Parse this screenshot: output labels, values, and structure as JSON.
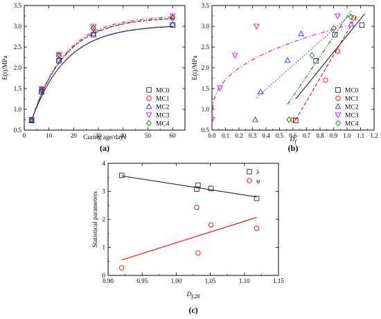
{
  "colors": {
    "MC0": "#222222",
    "MC1": "#ff0000",
    "MC2": "#2b2bff",
    "MC3": "#e600e6",
    "MC4": "#008000",
    "lambda": "#222222",
    "phi": "#ff0000"
  },
  "chart_data": [
    {
      "type": "scatter",
      "panel_label": "(a)",
      "xlabel": "Curing age/days",
      "ylabel": "E(t)/MPa",
      "xlim": [
        0,
        65
      ],
      "ylim": [
        0.5,
        3.5
      ],
      "xticks": [
        0,
        10,
        20,
        30,
        40,
        50,
        60
      ],
      "xtick_labels": [
        "0",
        "10",
        "20",
        "30",
        "40",
        "50",
        "60"
      ],
      "yticks": [
        0.5,
        1.0,
        1.5,
        2.0,
        2.5,
        3.0,
        3.5
      ],
      "ytick_labels": [
        "0.5",
        "1.0",
        "1.5",
        "2.0",
        "2.5",
        "3.0",
        "3.5"
      ],
      "legend_position": "bottom-right",
      "series": [
        {
          "name": "MC0",
          "marker": "square",
          "line": "solid",
          "x": [
            3,
            7,
            14,
            28,
            60
          ],
          "y": [
            0.73,
            1.42,
            2.17,
            2.8,
            3.03
          ]
        },
        {
          "name": "MC1",
          "marker": "circle",
          "line": "dashed",
          "x": [
            3,
            7,
            14,
            28,
            60
          ],
          "y": [
            0.75,
            1.48,
            2.3,
            2.95,
            3.2
          ]
        },
        {
          "name": "MC2",
          "marker": "triangle-up",
          "line": "dotted",
          "x": [
            3,
            7,
            14,
            28,
            60
          ],
          "y": [
            0.74,
            1.45,
            2.2,
            2.82,
            3.05
          ]
        },
        {
          "name": "MC3",
          "marker": "triangle-down",
          "line": "dash-dot",
          "x": [
            3,
            7,
            14,
            28,
            60
          ],
          "y": [
            0.76,
            1.5,
            2.32,
            3.0,
            3.25
          ]
        },
        {
          "name": "MC4",
          "marker": "diamond",
          "line": "dash-dot-dot",
          "x": [
            3,
            7,
            14,
            28,
            60
          ],
          "y": [
            0.74,
            1.47,
            2.28,
            2.96,
            3.22
          ]
        }
      ],
      "fit_curves": [
        {
          "series": "MC0",
          "e_inf": 3.03,
          "k": 0.072
        },
        {
          "series": "MC1",
          "e_inf": 3.22,
          "k": 0.073
        },
        {
          "series": "MC2",
          "e_inf": 3.04,
          "k": 0.072
        },
        {
          "series": "MC3",
          "e_inf": 3.26,
          "k": 0.074
        },
        {
          "series": "MC4",
          "e_inf": 3.23,
          "k": 0.073
        }
      ]
    },
    {
      "type": "scatter",
      "panel_label": "(b)",
      "xlabel": "D",
      "xlabel_sub": "f",
      "ylabel": "E(t)/MPa",
      "xlim": [
        0,
        1.2
      ],
      "ylim": [
        0.5,
        3.5
      ],
      "xticks": [
        0.0,
        0.1,
        0.2,
        0.3,
        0.4,
        0.5,
        0.6,
        0.7,
        0.8,
        0.9,
        1.0,
        1.1,
        1.2
      ],
      "xtick_labels": [
        "0.0",
        "0.1",
        "0.2",
        "0.3",
        "0.4",
        "0.5",
        "0.6",
        "0.7",
        "0.8",
        "0.9",
        "1.0",
        "1.1",
        "1.2"
      ],
      "yticks": [
        0.5,
        1.0,
        1.5,
        2.0,
        2.5,
        3.0,
        3.5
      ],
      "ytick_labels": [
        "0.5",
        "1.0",
        "1.5",
        "2.0",
        "2.5",
        "3.0",
        "3.5"
      ],
      "legend_position": "bottom-right",
      "series": [
        {
          "name": "MC0",
          "marker": "square",
          "line": "solid",
          "x": [
            0.62,
            0.77,
            0.91,
            1.11
          ],
          "y": [
            0.73,
            2.17,
            2.8,
            3.03
          ]
        },
        {
          "name": "MC1",
          "marker": "circle",
          "line": "dashed",
          "x": [
            0.6,
            0.84,
            0.93,
            1.05
          ],
          "y": [
            0.75,
            1.7,
            2.4,
            3.2
          ]
        },
        {
          "name": "MC2",
          "marker": "triangle-up",
          "line": "dotted",
          "x": [
            0.32,
            0.36,
            0.56,
            0.66,
            1.03
          ],
          "y": [
            0.75,
            1.42,
            2.18,
            2.82,
            3.05
          ]
        },
        {
          "name": "MC3",
          "marker": "triangle-down",
          "line": "dash-dot",
          "x": [
            0.0,
            0.06,
            0.17,
            0.33,
            0.93
          ],
          "y": [
            0.76,
            1.52,
            2.3,
            3.0,
            3.25
          ]
        },
        {
          "name": "MC4",
          "marker": "diamond",
          "line": "dash-dot-dot",
          "x": [
            0.57,
            0.74,
            0.9,
            1.03
          ],
          "y": [
            0.75,
            2.3,
            2.95,
            3.22
          ]
        }
      ],
      "fit_lines": [
        {
          "series": "MC0",
          "x": [
            0.62,
            1.13
          ],
          "y": [
            1.25,
            3.3
          ]
        },
        {
          "series": "MC1",
          "x": [
            0.62,
            1.07
          ],
          "y": [
            0.75,
            3.25
          ]
        },
        {
          "series": "MC2",
          "x": [
            0.33,
            1.03
          ],
          "y": [
            1.28,
            3.3
          ]
        },
        {
          "series": "MC4",
          "x": [
            0.56,
            1.03
          ],
          "y": [
            1.12,
            3.38
          ]
        }
      ],
      "fit_curve_power": {
        "series": "MC3",
        "a": 3.72,
        "b": 0.5,
        "c": -0.5,
        "x_range": [
          0.0,
          1.0
        ]
      }
    },
    {
      "type": "scatter",
      "panel_label": "(c)",
      "xlabel": "D",
      "xlabel_sub": "f,28",
      "ylabel": "Statistical parameters",
      "xlim": [
        0.9,
        1.15
      ],
      "ylim": [
        0,
        4
      ],
      "xticks": [
        0.9,
        0.95,
        1.0,
        1.05,
        1.1,
        1.15
      ],
      "xtick_labels": [
        "0.90",
        "0.95",
        "1.00",
        "1.05",
        "1.10",
        "1.15"
      ],
      "yticks": [
        0,
        1,
        2,
        3,
        4
      ],
      "ytick_labels": [
        "0",
        "1",
        "2",
        "3",
        "4"
      ],
      "legend_position": "top-right",
      "series": [
        {
          "name": "λ",
          "marker": "square",
          "x": [
            0.92,
            1.03,
            1.032,
            1.051,
            1.118
          ],
          "y": [
            3.57,
            3.08,
            3.22,
            3.1,
            2.75
          ]
        },
        {
          "name": "φ",
          "marker": "circle",
          "x": [
            0.92,
            1.03,
            1.032,
            1.051,
            1.118
          ],
          "y": [
            0.27,
            2.43,
            0.8,
            1.8,
            1.68
          ]
        }
      ],
      "fit_lines": [
        {
          "series": "λ",
          "x": [
            0.92,
            1.118
          ],
          "y": [
            3.55,
            2.8
          ]
        },
        {
          "series": "φ",
          "x": [
            0.92,
            1.118
          ],
          "y": [
            0.55,
            2.07
          ]
        }
      ]
    }
  ]
}
